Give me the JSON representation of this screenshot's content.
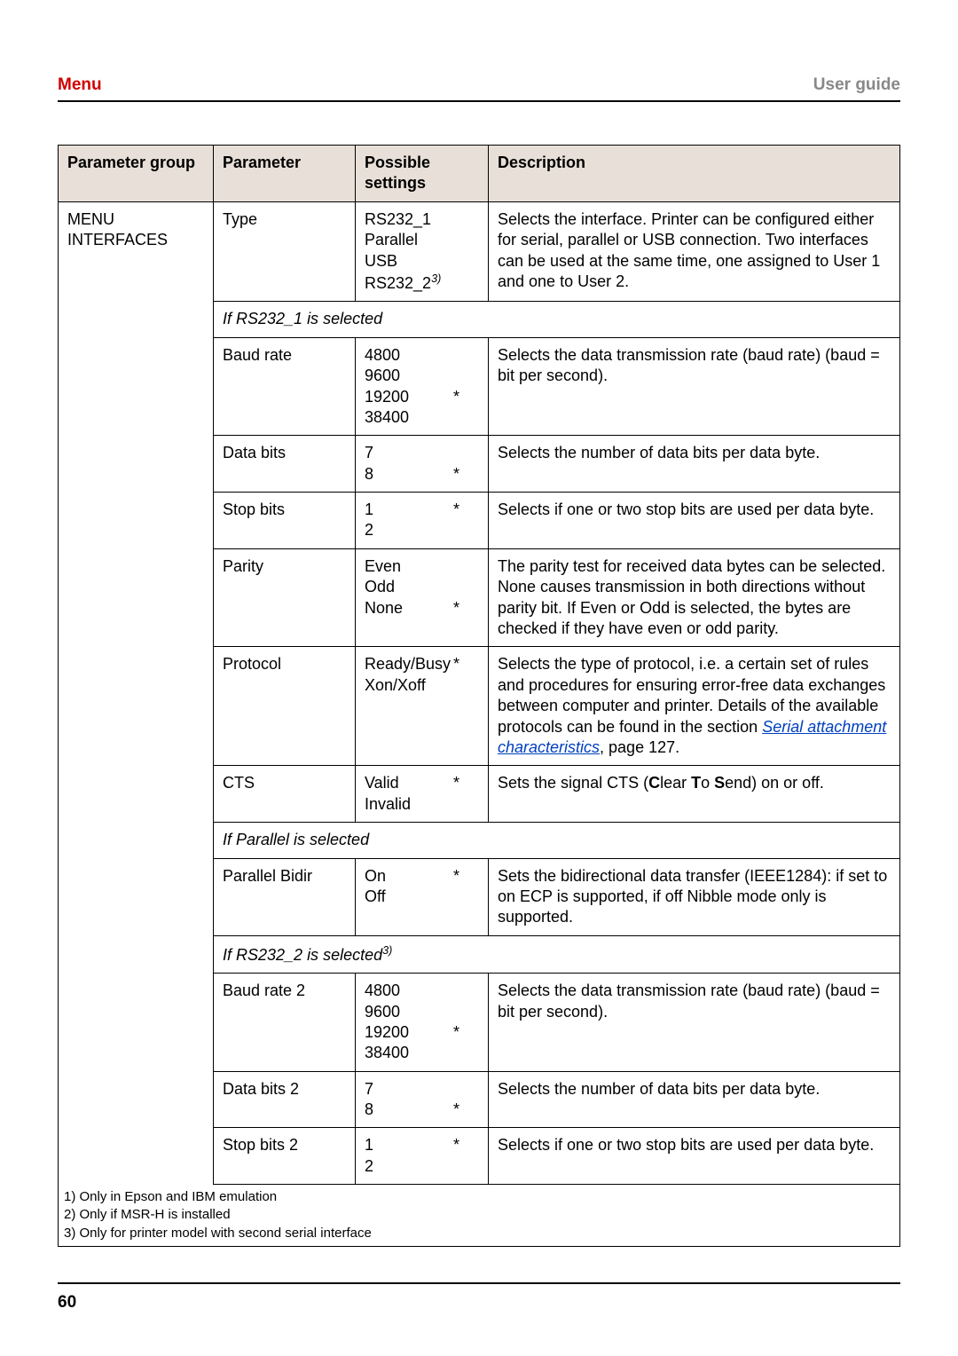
{
  "header": {
    "left": "Menu",
    "right": "User guide"
  },
  "columns": [
    "Parameter group",
    "Parameter",
    "Possible settings",
    "Description"
  ],
  "groupLabel": "MENU\nINTERFACES",
  "sections": [
    {
      "rows": [
        {
          "param": "Type",
          "settings": [
            "RS232_1",
            "Parallel",
            "USB",
            "RS232_2§3)"
          ],
          "star": null,
          "desc": "Selects the interface. Printer can be configured either for serial, parallel or USB connection. Two interfaces can be used at the same time, one assigned to User 1 and one to User 2."
        }
      ]
    },
    {
      "heading": "If RS232_1 is selected",
      "rows": [
        {
          "param": "Baud rate",
          "settings": [
            "4800",
            "9600",
            "19200",
            "38400"
          ],
          "star": 2,
          "desc": "Selects the data transmission rate (baud rate) (baud = bit per second)."
        },
        {
          "param": "Data bits",
          "settings": [
            "7",
            "8"
          ],
          "star": 1,
          "desc": "Selects the number of data bits per data byte."
        },
        {
          "param": "Stop bits",
          "settings": [
            "1",
            "2"
          ],
          "star": 0,
          "desc": "Selects if one or two stop bits are used per data byte."
        },
        {
          "param": "Parity",
          "settings": [
            "Even",
            "Odd",
            "None"
          ],
          "star": 2,
          "desc": "The parity test for received data bytes can be selected. None causes transmission in both directions without parity bit. If Even or Odd is selected, the bytes are checked if they have even or odd parity."
        },
        {
          "param": "Protocol",
          "settings": [
            "Ready/Busy",
            "Xon/Xoff"
          ],
          "star": 0,
          "descHtml": "Selects the type of protocol, i.e. a certain set of rules and procedures for ensuring error-free data exchanges between computer and printer. Details of the available protocols can be found in the section <span class=\"link\">Serial attachment characteristics</span>, page 127."
        },
        {
          "param": "CTS",
          "settings": [
            "Valid",
            "Invalid"
          ],
          "star": 0,
          "descHtml": "Sets the signal CTS (<b>C</b>lear <b>T</b>o <b>S</b>end) on or off."
        }
      ]
    },
    {
      "heading": "If Parallel is selected",
      "rows": [
        {
          "param": "Parallel Bidir",
          "settings": [
            "On",
            "Off"
          ],
          "star": 0,
          "desc": "Sets the bidirectional data transfer (IEEE1284): if set to on ECP is supported, if off Nibble mode only is supported."
        }
      ]
    },
    {
      "heading": "If RS232_2 is selected§3)",
      "rows": [
        {
          "param": "Baud rate 2",
          "settings": [
            "4800",
            "9600",
            "19200",
            "38400"
          ],
          "star": 2,
          "desc": "Selects the data transmission rate (baud rate) (baud = bit per second)."
        },
        {
          "param": "Data bits 2",
          "settings": [
            "7",
            "8"
          ],
          "star": 1,
          "desc": "Selects the number of data bits per data byte."
        },
        {
          "param": "Stop bits 2",
          "settings": [
            "1",
            "2"
          ],
          "star": 0,
          "desc": "Selects if one or two stop bits are used per data byte."
        }
      ]
    }
  ],
  "footnotes": [
    "1) Only in Epson and IBM emulation",
    "2) Only if MSR-H is installed",
    "3) Only for printer model with second serial interface"
  ],
  "pageNumber": "60"
}
